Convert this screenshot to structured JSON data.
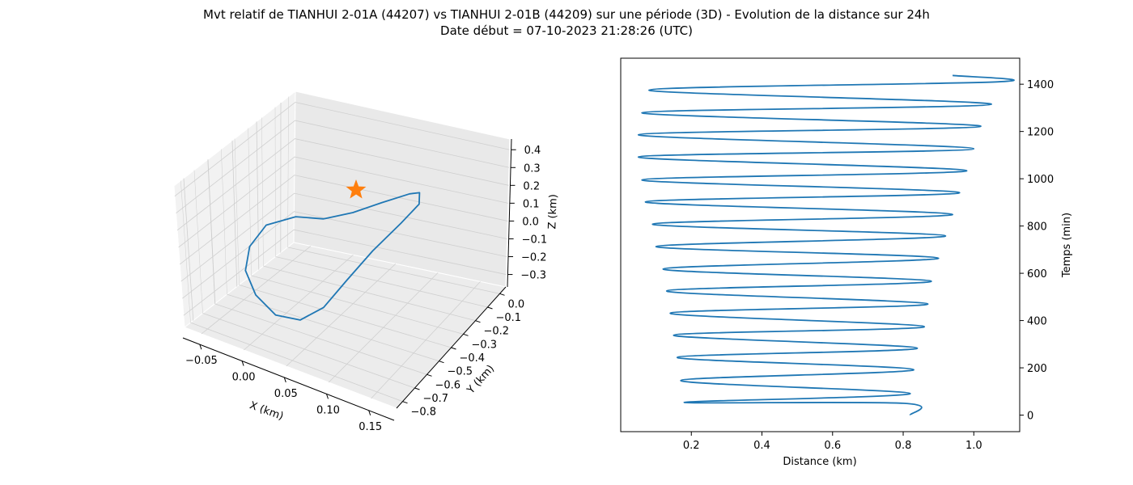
{
  "figure": {
    "title_line1": "Mvt relatif de TIANHUI 2-01A (44207) vs TIANHUI 2-01B (44209) sur une période (3D) - Evolution de la distance sur 24h",
    "title_line2": "Date début = 07-10-2023 21:28:26 (UTC)"
  },
  "colors": {
    "line": "#1f77b4",
    "marker": "#ff7f0e",
    "pane": "#f2f2f2",
    "grid": "#cfcfcf"
  },
  "chart_data": [
    {
      "type": "line",
      "projection": "3d",
      "xlabel": "X (km)",
      "ylabel": "Y (km)",
      "zlabel": "Z (km)",
      "x_ticks": [
        "−0.05",
        "0.00",
        "0.05",
        "0.10",
        "0.15"
      ],
      "y_ticks": [
        "0.0",
        "−0.1",
        "−0.2",
        "−0.3",
        "−0.4",
        "−0.5",
        "−0.6",
        "−0.7",
        "−0.8"
      ],
      "z_ticks": [
        "0.4",
        "0.3",
        "0.2",
        "0.1",
        "0.0",
        "−0.1",
        "−0.2",
        "−0.3"
      ],
      "grid": true,
      "marker": "star",
      "series_points_xyz_km": [
        [
          0.0,
          0.0,
          0.04
        ],
        [
          -0.03,
          -0.08,
          0.06
        ],
        [
          -0.06,
          -0.18,
          0.03
        ],
        [
          -0.07,
          -0.3,
          -0.05
        ],
        [
          -0.06,
          -0.45,
          -0.12
        ],
        [
          -0.03,
          -0.6,
          -0.18
        ],
        [
          0.01,
          -0.72,
          -0.22
        ],
        [
          0.05,
          -0.78,
          -0.2
        ],
        [
          0.08,
          -0.76,
          -0.12
        ],
        [
          0.1,
          -0.65,
          0.0
        ],
        [
          0.12,
          -0.5,
          0.12
        ],
        [
          0.14,
          -0.32,
          0.22
        ],
        [
          0.15,
          -0.18,
          0.28
        ],
        [
          0.14,
          -0.08,
          0.3
        ],
        [
          0.12,
          -0.02,
          0.26
        ],
        [
          0.08,
          0.0,
          0.18
        ],
        [
          0.04,
          0.0,
          0.1
        ],
        [
          0.0,
          0.0,
          0.04
        ]
      ]
    },
    {
      "type": "line",
      "xlabel": "Distance (km)",
      "ylabel": "Temps (min)",
      "xlim": [
        0.0,
        1.13
      ],
      "ylim": [
        -70,
        1510
      ],
      "x_ticks": [
        "0.2",
        "0.4",
        "0.6",
        "0.8",
        "1.0"
      ],
      "y_ticks": [
        "0",
        "200",
        "400",
        "600",
        "800",
        "1000",
        "1200",
        "1400"
      ],
      "grid": false,
      "yaxis_position": "right",
      "series": [
        {
          "points": [
            [
              0.82,
              0
            ],
            [
              0.8,
              50
            ],
            [
              0.18,
              54
            ],
            [
              0.82,
              91
            ],
            [
              0.17,
              146
            ],
            [
              0.83,
              192
            ],
            [
              0.16,
              244
            ],
            [
              0.84,
              283
            ],
            [
              0.15,
              338
            ],
            [
              0.86,
              374
            ],
            [
              0.14,
              431
            ],
            [
              0.87,
              470
            ],
            [
              0.13,
              525
            ],
            [
              0.88,
              566
            ],
            [
              0.12,
              618
            ],
            [
              0.9,
              664
            ],
            [
              0.1,
              713
            ],
            [
              0.92,
              758
            ],
            [
              0.09,
              808
            ],
            [
              0.94,
              849
            ],
            [
              0.07,
              902
            ],
            [
              0.96,
              941
            ],
            [
              0.06,
              995
            ],
            [
              0.98,
              1034
            ],
            [
              0.05,
              1092
            ],
            [
              1.0,
              1127
            ],
            [
              0.05,
              1186
            ],
            [
              1.02,
              1222
            ],
            [
              0.06,
              1279
            ],
            [
              1.05,
              1315
            ],
            [
              0.08,
              1375
            ],
            [
              1.07,
              1410
            ],
            [
              0.94,
              1437
            ]
          ]
        }
      ]
    }
  ]
}
